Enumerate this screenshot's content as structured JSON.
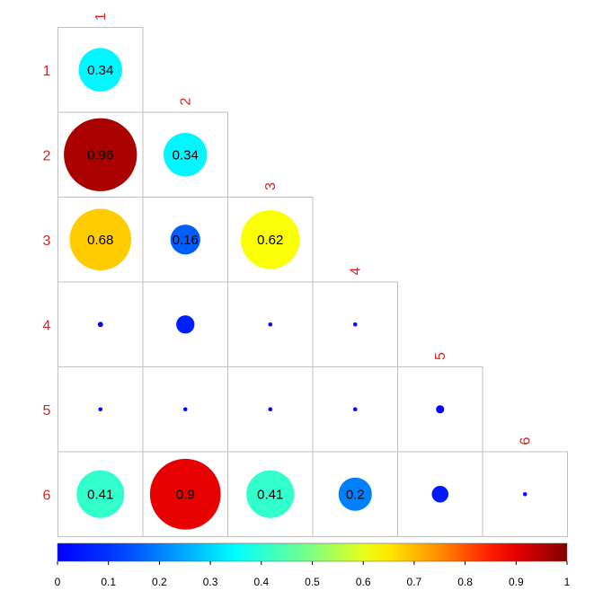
{
  "chart_data": {
    "type": "heatmap",
    "style": "lower-triangular correlation circle plot",
    "variables": [
      "1",
      "2",
      "3",
      "4",
      "5",
      "6"
    ],
    "matrix": [
      [
        0.34,
        null,
        null,
        null,
        null,
        null
      ],
      [
        0.96,
        0.34,
        null,
        null,
        null,
        null
      ],
      [
        0.68,
        0.16,
        0.62,
        null,
        null,
        null
      ],
      [
        0.005,
        0.06,
        0.003,
        0.003,
        null,
        null
      ],
      [
        0.003,
        0.003,
        0.003,
        0.003,
        0.012,
        null
      ],
      [
        0.41,
        0.9,
        0.41,
        0.2,
        0.05,
        0.003
      ]
    ],
    "labels": [
      [
        "0.34",
        null,
        null,
        null,
        null,
        null
      ],
      [
        "0.96",
        "0.34",
        null,
        null,
        null,
        null
      ],
      [
        "0.68",
        "0.16",
        "0.62",
        null,
        null,
        null
      ],
      [
        null,
        null,
        null,
        null,
        null,
        null
      ],
      [
        null,
        null,
        null,
        null,
        null,
        null
      ],
      [
        "0.41",
        "0.9",
        "0.41",
        "0.2",
        null,
        null
      ]
    ],
    "colorbar": {
      "range": [
        0,
        1
      ],
      "ticks": [
        "0",
        "0.1",
        "0.2",
        "0.3",
        "0.4",
        "0.5",
        "0.6",
        "0.7",
        "0.8",
        "0.9",
        "1"
      ],
      "colormap": "jet"
    },
    "colors": {
      "label_color": "#dd2222",
      "grid_color": "#c0c0c0"
    }
  }
}
